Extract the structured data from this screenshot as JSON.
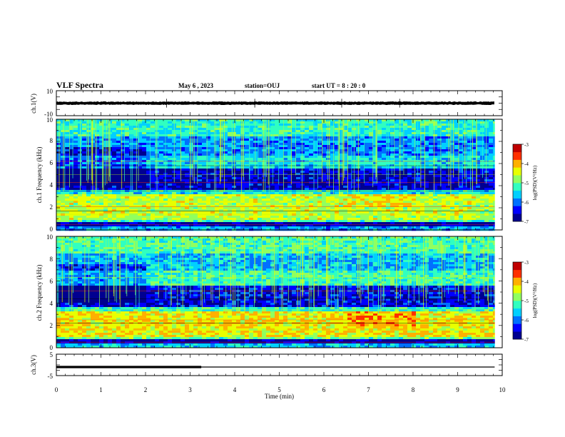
{
  "header": {
    "title": "VLF Spectra",
    "date": "May 6 , 2023",
    "station": "station=OUJ",
    "start_time": "start UT = 8 : 20 : 0"
  },
  "colorbar": {
    "label": "log(PSD)(V²/Hz)",
    "range": [
      -7,
      -3
    ],
    "tick_labels": [
      "-3",
      "-4",
      "-5",
      "-6",
      "-7"
    ],
    "colors": [
      "#000090",
      "#0000ff",
      "#0070ff",
      "#00d0ff",
      "#30ffc0",
      "#90ff60",
      "#e8ff00",
      "#ffb000",
      "#ff3000",
      "#c00000"
    ]
  },
  "chart_data": [
    {
      "type": "line",
      "panel": "ch1-waveform",
      "ylabel": "ch.1(V)",
      "ylim": [
        -10,
        10
      ],
      "y_tick_labels": [
        "10",
        "-10"
      ],
      "xlim": [
        0,
        10
      ],
      "baseline_value": 0,
      "noise_envelope": [
        -1.2,
        1.2
      ],
      "signal_end_min": 9.83
    },
    {
      "type": "heatmap",
      "panel": "ch1-spectrogram",
      "ylabel": "ch.1 Frequency (kHz)",
      "ylim": [
        0,
        10
      ],
      "y_tick_labels": [
        "0",
        "2",
        "4",
        "6",
        "8",
        "10"
      ],
      "xlim": [
        0,
        9.83
      ],
      "bands_khz": [
        {
          "range": [
            0,
            0.3
          ],
          "level": -5.8
        },
        {
          "range": [
            0.3,
            0.7
          ],
          "level": -6.8
        },
        {
          "range": [
            0.7,
            1.0
          ],
          "level": -5.2
        },
        {
          "range": [
            1.0,
            3.2
          ],
          "level": -4.6
        },
        {
          "range": [
            3.2,
            3.6
          ],
          "level": -5.4
        },
        {
          "range": [
            3.6,
            5.6
          ],
          "level": -6.6
        },
        {
          "range": [
            5.6,
            6.8
          ],
          "level": -5.5
        },
        {
          "range": [
            6.8,
            8.5
          ],
          "level": -5.9
        },
        {
          "range": [
            8.5,
            10.0
          ],
          "level": -5.3
        }
      ],
      "interference_lines_khz": [
        0.5,
        1.4,
        1.7,
        2.1,
        2.6,
        3.5,
        4.3,
        5.0,
        5.8,
        6.2
      ]
    },
    {
      "type": "heatmap",
      "panel": "ch2-spectrogram",
      "ylabel": "ch.2 Frequency (kHz)",
      "ylim": [
        0,
        10
      ],
      "y_tick_labels": [
        "0",
        "2",
        "4",
        "6",
        "8",
        "10"
      ],
      "xlim": [
        0,
        9.83
      ],
      "bands_khz": [
        {
          "range": [
            0,
            0.3
          ],
          "level": -5.6
        },
        {
          "range": [
            0.3,
            0.7
          ],
          "level": -6.8
        },
        {
          "range": [
            0.7,
            1.0
          ],
          "level": -5.0
        },
        {
          "range": [
            1.0,
            3.3
          ],
          "level": -4.3
        },
        {
          "range": [
            3.3,
            3.7
          ],
          "level": -5.3
        },
        {
          "range": [
            3.7,
            5.6
          ],
          "level": -6.5
        },
        {
          "range": [
            5.6,
            7.0
          ],
          "level": -5.2
        },
        {
          "range": [
            7.0,
            8.5
          ],
          "level": -5.7
        },
        {
          "range": [
            8.5,
            10.0
          ],
          "level": -5.1
        }
      ],
      "interference_lines_khz": [
        0.5,
        1.6,
        2.2,
        2.5,
        3.4,
        4.4,
        5.1,
        6.3
      ]
    },
    {
      "type": "line",
      "panel": "ch3-waveform",
      "ylabel": "ch.3(V)",
      "ylim": [
        -5,
        5
      ],
      "y_tick_labels": [
        "5",
        "-5"
      ],
      "xlim": [
        0,
        10
      ],
      "value": -1.0,
      "thick_segment_min": [
        0,
        3.25
      ],
      "line_end_min": 9.83
    }
  ],
  "x_axis": {
    "label": "Time (min)",
    "tick_labels": [
      "0",
      "1",
      "2",
      "3",
      "4",
      "5",
      "6",
      "7",
      "8",
      "9",
      "10"
    ]
  }
}
